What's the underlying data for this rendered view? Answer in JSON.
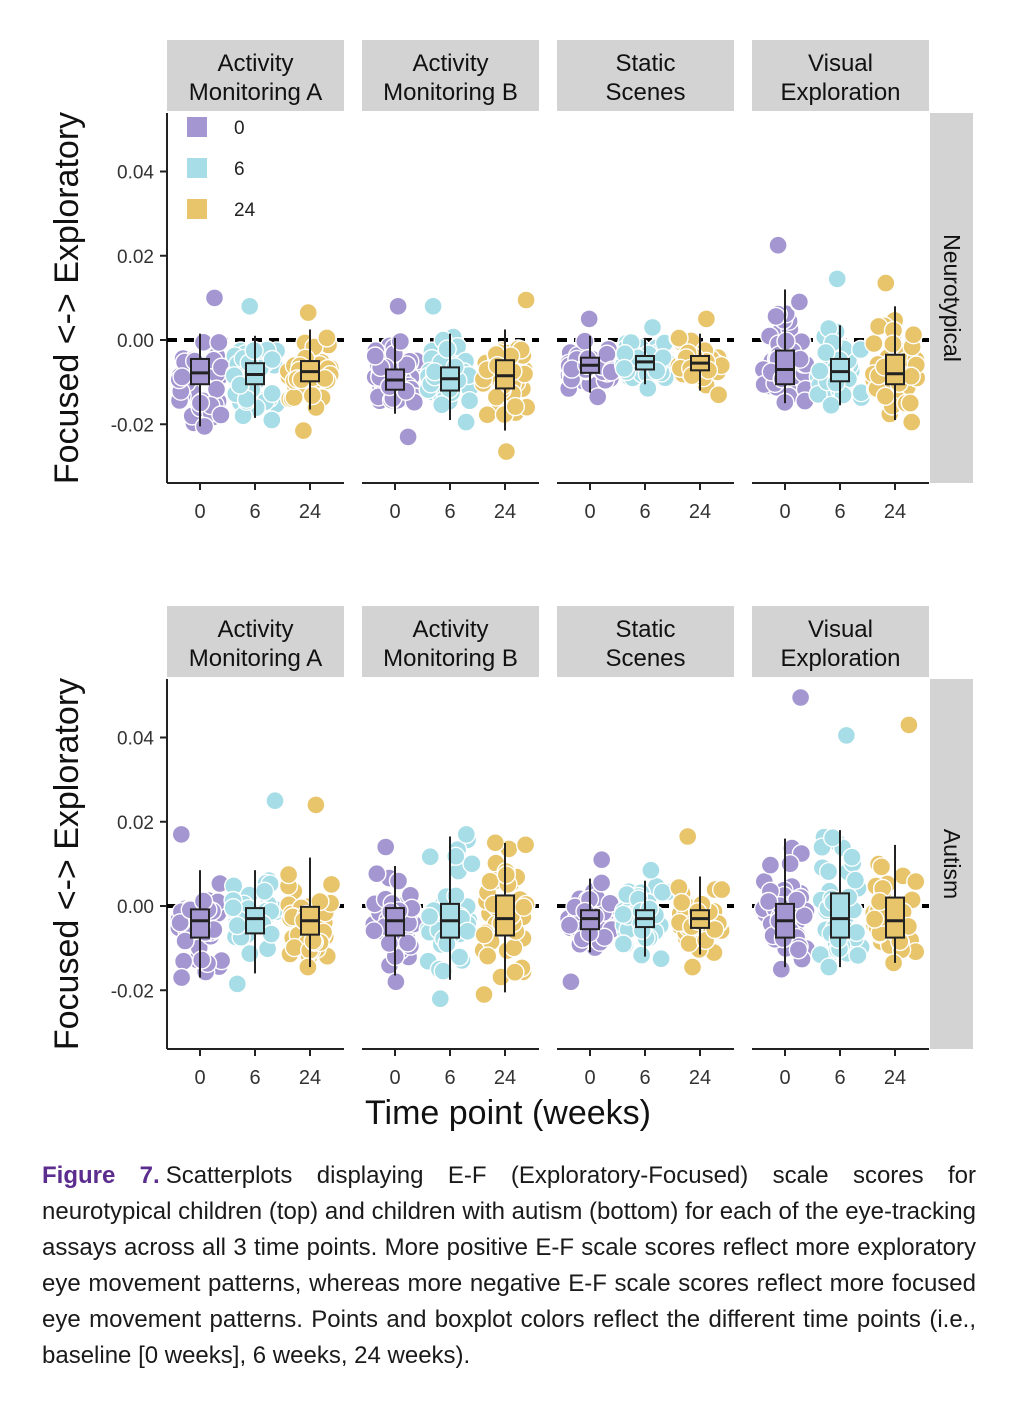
{
  "figure": {
    "label": "Figure 7.",
    "caption": "Scatterplots displaying E-F (Exploratory-Focused) scale scores for neurotypical children (top) and children with autism (bottom) for each of the eye-tracking assays across all 3 time points. More positive E-F scale scores reflect more exploratory eye movement patterns, whereas more negative E-F scale scores reflect more focused eye movement patterns. Points and boxplot colors reflect the different time points (i.e., baseline [0 weeks], 6 weeks, 24 weeks)."
  },
  "colors": {
    "0": "#a497d1",
    "6": "#a6dde6",
    "24": "#e8c46a",
    "strip_bg": "#d3d3d3"
  },
  "chart_data": {
    "type": "scatter",
    "subtype": "faceted jittered scatter with boxplots",
    "ylabel": "Focused <-> Exploratory",
    "xlabel": "Time point (weeks)",
    "ylim": [
      -0.034,
      0.054
    ],
    "yticks": [
      "-0.02",
      "0.00",
      "0.02",
      "0.04"
    ],
    "ytick_values": [
      -0.02,
      0.0,
      0.02,
      0.04
    ],
    "reference_line": 0.0,
    "legend": {
      "placement": "top-left (inside first panel)",
      "entries": [
        "0",
        "6",
        "24"
      ]
    },
    "columns": [
      "Activity Monitoring A",
      "Activity Monitoring B",
      "Static Scenes",
      "Visual Exploration"
    ],
    "rows": [
      {
        "group": "Neurotypical",
        "panels": [
          {
            "assay": "Activity Monitoring A",
            "boxes": [
              {
                "time": "0",
                "median": -0.0078,
                "q1": -0.0105,
                "q3": -0.0045,
                "whisker_low": -0.0205,
                "whisker_high": 0.0015,
                "point_min": -0.0205,
                "point_max": 0.01
              },
              {
                "time": "6",
                "median": -0.0082,
                "q1": -0.0105,
                "q3": -0.0055,
                "whisker_low": -0.0185,
                "whisker_high": 0.001,
                "point_min": -0.019,
                "point_max": 0.008
              },
              {
                "time": "24",
                "median": -0.0075,
                "q1": -0.0098,
                "q3": -0.005,
                "whisker_low": -0.0165,
                "whisker_high": 0.0025,
                "point_min": -0.0215,
                "point_max": 0.0065
              }
            ]
          },
          {
            "assay": "Activity Monitoring B",
            "boxes": [
              {
                "time": "0",
                "median": -0.0095,
                "q1": -0.0118,
                "q3": -0.007,
                "whisker_low": -0.0175,
                "whisker_high": 0.0005,
                "point_min": -0.023,
                "point_max": 0.008
              },
              {
                "time": "6",
                "median": -0.0092,
                "q1": -0.012,
                "q3": -0.0065,
                "whisker_low": -0.019,
                "whisker_high": 0.0015,
                "point_min": -0.0195,
                "point_max": 0.008
              },
              {
                "time": "24",
                "median": -0.0085,
                "q1": -0.0115,
                "q3": -0.0048,
                "whisker_low": -0.0215,
                "whisker_high": 0.0025,
                "point_min": -0.0265,
                "point_max": 0.0095
              }
            ]
          },
          {
            "assay": "Static Scenes",
            "boxes": [
              {
                "time": "0",
                "median": -0.006,
                "q1": -0.0078,
                "q3": -0.0042,
                "whisker_low": -0.0125,
                "whisker_high": 0.001,
                "point_min": -0.0135,
                "point_max": 0.005
              },
              {
                "time": "6",
                "median": -0.0052,
                "q1": -0.007,
                "q3": -0.0038,
                "whisker_low": -0.0105,
                "whisker_high": 0.0005,
                "point_min": -0.0115,
                "point_max": 0.003
              },
              {
                "time": "24",
                "median": -0.0055,
                "q1": -0.0072,
                "q3": -0.0038,
                "whisker_low": -0.012,
                "whisker_high": 0.0015,
                "point_min": -0.013,
                "point_max": 0.005
              }
            ]
          },
          {
            "assay": "Visual Exploration",
            "boxes": [
              {
                "time": "0",
                "median": -0.007,
                "q1": -0.0105,
                "q3": -0.0025,
                "whisker_low": -0.015,
                "whisker_high": 0.012,
                "point_min": -0.0145,
                "point_max": 0.0225
              },
              {
                "time": "6",
                "median": -0.0075,
                "q1": -0.0098,
                "q3": -0.0045,
                "whisker_low": -0.0155,
                "whisker_high": 0.0035,
                "point_min": -0.0155,
                "point_max": 0.0145
              },
              {
                "time": "24",
                "median": -0.008,
                "q1": -0.0105,
                "q3": -0.0035,
                "whisker_low": -0.019,
                "whisker_high": 0.008,
                "point_min": -0.0195,
                "point_max": 0.0135
              }
            ]
          }
        ]
      },
      {
        "group": "Autism",
        "panels": [
          {
            "assay": "Activity Monitoring A",
            "boxes": [
              {
                "time": "0",
                "median": -0.0035,
                "q1": -0.0075,
                "q3": -0.0008,
                "whisker_low": -0.017,
                "whisker_high": 0.0085,
                "point_min": -0.017,
                "point_max": 0.017
              },
              {
                "time": "6",
                "median": -0.003,
                "q1": -0.0065,
                "q3": -0.0005,
                "whisker_low": -0.016,
                "whisker_high": 0.0085,
                "point_min": -0.0185,
                "point_max": 0.025
              },
              {
                "time": "24",
                "median": -0.0035,
                "q1": -0.0068,
                "q3": -0.0002,
                "whisker_low": -0.0145,
                "whisker_high": 0.0115,
                "point_min": -0.0145,
                "point_max": 0.024
              }
            ]
          },
          {
            "assay": "Activity Monitoring B",
            "boxes": [
              {
                "time": "0",
                "median": -0.0035,
                "q1": -0.007,
                "q3": -0.0005,
                "whisker_low": -0.0165,
                "whisker_high": 0.0095,
                "point_min": -0.018,
                "point_max": 0.014
              },
              {
                "time": "6",
                "median": -0.0035,
                "q1": -0.0075,
                "q3": 0.0005,
                "whisker_low": -0.0175,
                "whisker_high": 0.0165,
                "point_min": -0.022,
                "point_max": 0.017
              },
              {
                "time": "24",
                "median": -0.003,
                "q1": -0.007,
                "q3": 0.0025,
                "whisker_low": -0.0205,
                "whisker_high": 0.015,
                "point_min": -0.021,
                "point_max": 0.015
              }
            ]
          },
          {
            "assay": "Static Scenes",
            "boxes": [
              {
                "time": "0",
                "median": -0.003,
                "q1": -0.0055,
                "q3": -0.001,
                "whisker_low": -0.011,
                "whisker_high": 0.0065,
                "point_min": -0.018,
                "point_max": 0.011
              },
              {
                "time": "6",
                "median": -0.003,
                "q1": -0.005,
                "q3": -0.001,
                "whisker_low": -0.012,
                "whisker_high": 0.006,
                "point_min": -0.0125,
                "point_max": 0.0085
              },
              {
                "time": "24",
                "median": -0.003,
                "q1": -0.0052,
                "q3": -0.001,
                "whisker_low": -0.0115,
                "whisker_high": 0.007,
                "point_min": -0.0145,
                "point_max": 0.0165
              }
            ]
          },
          {
            "assay": "Visual Exploration",
            "boxes": [
              {
                "time": "0",
                "median": -0.0035,
                "q1": -0.0075,
                "q3": 0.0005,
                "whisker_low": -0.0145,
                "whisker_high": 0.016,
                "point_min": -0.015,
                "point_max": 0.0495
              },
              {
                "time": "6",
                "median": -0.003,
                "q1": -0.0075,
                "q3": 0.003,
                "whisker_low": -0.0145,
                "whisker_high": 0.018,
                "point_min": -0.0145,
                "point_max": 0.0405
              },
              {
                "time": "24",
                "median": -0.0035,
                "q1": -0.0075,
                "q3": 0.002,
                "whisker_low": -0.0135,
                "whisker_high": 0.0145,
                "point_min": -0.0135,
                "point_max": 0.043
              }
            ]
          }
        ]
      }
    ]
  }
}
